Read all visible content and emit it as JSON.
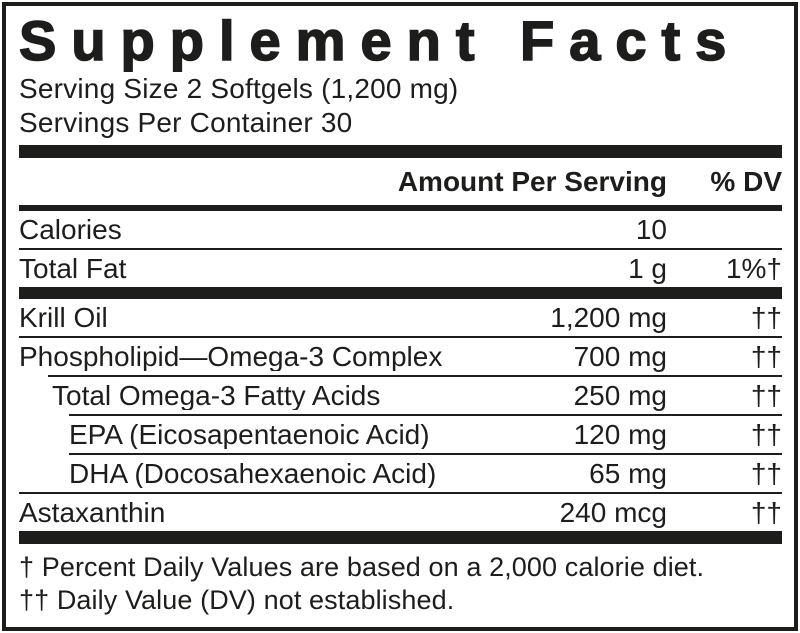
{
  "label": {
    "title": "Supplement Facts",
    "serving_size": "Serving Size 2 Softgels (1,200 mg)",
    "servings_per_container": "Servings Per Container 30",
    "header": {
      "amount": "Amount Per Serving",
      "dv": "% DV"
    },
    "top_rows": [
      {
        "name": "Calories",
        "amount": "10",
        "dv": "",
        "indent": 0
      },
      {
        "name": "Total Fat",
        "amount": "1 g",
        "dv": "1%†",
        "indent": 0
      }
    ],
    "main_rows": [
      {
        "name": "Krill Oil",
        "amount": "1,200 mg",
        "dv": "††",
        "indent": 0
      },
      {
        "name": "Phospholipid—Omega-3 Complex",
        "amount": "700 mg",
        "dv": "††",
        "indent": 0
      },
      {
        "name": "Total Omega-3 Fatty Acids",
        "amount": "250 mg",
        "dv": "††",
        "indent": 1
      },
      {
        "name": "EPA (Eicosapentaenoic Acid)",
        "amount": "120 mg",
        "dv": "††",
        "indent": 2
      },
      {
        "name": "DHA (Docosahexaenoic Acid)",
        "amount": "65 mg",
        "dv": "††",
        "indent": 2
      },
      {
        "name": "Astaxanthin",
        "amount": "240 mcg",
        "dv": "††",
        "indent": 0
      }
    ],
    "footnotes": [
      "† Percent Daily Values are based on a 2,000 calorie diet.",
      "†† Daily Value (DV) not established."
    ],
    "colors": {
      "ink": "#1d1d1b",
      "background": "#ffffff"
    }
  }
}
